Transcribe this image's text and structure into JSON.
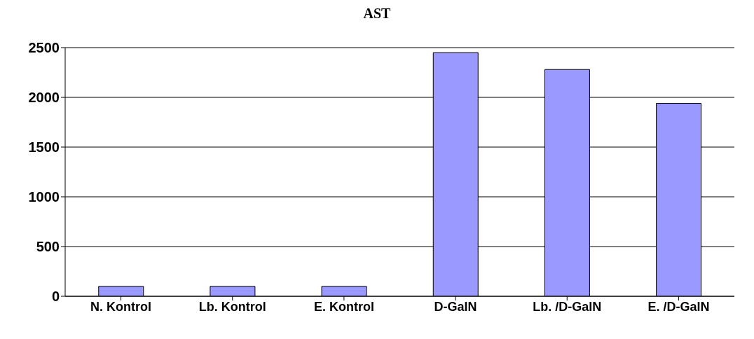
{
  "chart_data": {
    "type": "bar",
    "title": "AST",
    "categories": [
      "N. Kontrol",
      "Lb. Kontrol",
      "E. Kontrol",
      "D-GalN",
      "Lb. /D-GalN",
      "E. /D-GalN"
    ],
    "values": [
      100,
      100,
      100,
      2450,
      2280,
      1940
    ],
    "color": "#9999ff",
    "ylim": [
      0,
      2500
    ],
    "yticks": [
      0,
      500,
      1000,
      1500,
      2000,
      2500
    ],
    "grid": "y"
  }
}
